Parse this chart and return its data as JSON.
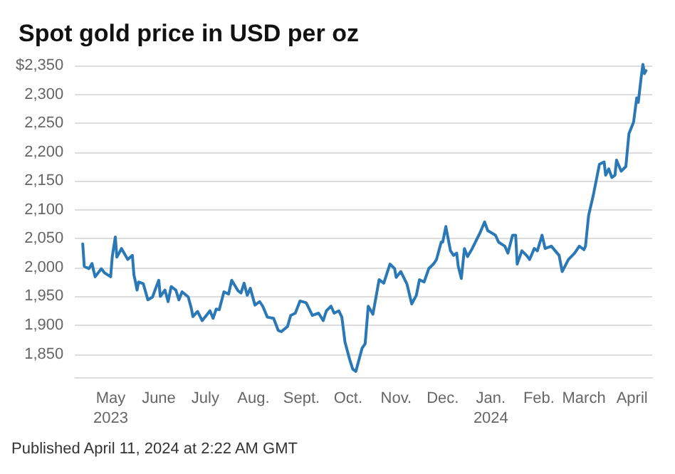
{
  "chart_data": {
    "type": "line",
    "title": "Spot gold price in USD per oz",
    "annotations": [
      "Published April 11, 2024 at 2:22 AM GMT"
    ],
    "series": [
      {
        "color": "#2a78b5",
        "x": [
          "2023-04-13",
          "2023-04-14",
          "2023-04-17",
          "2023-04-19",
          "2023-04-20",
          "2023-04-21",
          "2023-04-25",
          "2023-04-27",
          "2023-05-01",
          "2023-05-02",
          "2023-05-04",
          "2023-05-05",
          "2023-05-08",
          "2023-05-12",
          "2023-05-15",
          "2023-05-16",
          "2023-05-17",
          "2023-05-18",
          "2023-05-19",
          "2023-05-22",
          "2023-05-25",
          "2023-05-28",
          "2023-05-30",
          "2023-06-01",
          "2023-06-02",
          "2023-06-05",
          "2023-06-07",
          "2023-06-09",
          "2023-06-12",
          "2023-06-14",
          "2023-06-16",
          "2023-06-20",
          "2023-06-22",
          "2023-06-23",
          "2023-06-26",
          "2023-06-29",
          "2023-07-04",
          "2023-07-06",
          "2023-07-08",
          "2023-07-10",
          "2023-07-13",
          "2023-07-16",
          "2023-07-18",
          "2023-07-22",
          "2023-07-24",
          "2023-07-26",
          "2023-07-28",
          "2023-07-30",
          "2023-08-02",
          "2023-08-05",
          "2023-08-07",
          "2023-08-10",
          "2023-08-14",
          "2023-08-17",
          "2023-08-19",
          "2023-08-23",
          "2023-08-25",
          "2023-08-28",
          "2023-08-31",
          "2023-09-04",
          "2023-09-08",
          "2023-09-12",
          "2023-09-15",
          "2023-09-17",
          "2023-09-20",
          "2023-09-22",
          "2023-09-25",
          "2023-09-27",
          "2023-09-29",
          "2023-10-02",
          "2023-10-04",
          "2023-10-06",
          "2023-10-10",
          "2023-10-12",
          "2023-10-14",
          "2023-10-17",
          "2023-10-21",
          "2023-10-24",
          "2023-10-28",
          "2023-10-31",
          "2023-11-01",
          "2023-11-04",
          "2023-11-08",
          "2023-11-11",
          "2023-11-14",
          "2023-11-16",
          "2023-11-19",
          "2023-11-22",
          "2023-11-25",
          "2023-11-27",
          "2023-11-30",
          "2023-12-01",
          "2023-12-03",
          "2023-12-06",
          "2023-12-08",
          "2023-12-10",
          "2023-12-11",
          "2023-12-13",
          "2023-12-15",
          "2023-12-17",
          "2023-12-20",
          "2023-12-25",
          "2023-12-28",
          "2023-12-30",
          "2024-01-04",
          "2024-01-06",
          "2024-01-10",
          "2024-01-12",
          "2024-01-15",
          "2024-01-17",
          "2024-01-18",
          "2024-01-21",
          "2024-01-24",
          "2024-01-26",
          "2024-01-29",
          "2024-01-31",
          "2024-02-03",
          "2024-02-05",
          "2024-02-09",
          "2024-02-14",
          "2024-02-16",
          "2024-02-20",
          "2024-02-24",
          "2024-02-27",
          "2024-03-01",
          "2024-03-02",
          "2024-03-04",
          "2024-03-07",
          "2024-03-11",
          "2024-03-14",
          "2024-03-15",
          "2024-03-17",
          "2024-03-19",
          "2024-03-21",
          "2024-03-22",
          "2024-03-25",
          "2024-03-28",
          "2024-03-30",
          "2024-04-02",
          "2024-04-04",
          "2024-04-05",
          "2024-04-07",
          "2024-04-08",
          "2024-04-09",
          "2024-04-10"
        ],
        "values": [
          2041,
          2002,
          1998,
          2007,
          1995,
          1984,
          1998,
          1991,
          1984,
          2018,
          2053,
          2018,
          2033,
          2014,
          2021,
          1987,
          1975,
          1961,
          1975,
          1972,
          1944,
          1949,
          1964,
          1978,
          1950,
          1961,
          1941,
          1967,
          1961,
          1944,
          1958,
          1949,
          1929,
          1915,
          1924,
          1908,
          1925,
          1912,
          1928,
          1927,
          1958,
          1954,
          1978,
          1960,
          1956,
          1973,
          1952,
          1964,
          1935,
          1941,
          1933,
          1914,
          1912,
          1891,
          1889,
          1898,
          1917,
          1921,
          1942,
          1939,
          1917,
          1921,
          1908,
          1925,
          1933,
          1921,
          1925,
          1914,
          1871,
          1841,
          1824,
          1820,
          1860,
          1868,
          1933,
          1919,
          1979,
          1973,
          2006,
          1998,
          1983,
          1993,
          1971,
          1937,
          1952,
          1979,
          1975,
          1998,
          2006,
          2014,
          2044,
          2044,
          2071,
          2029,
          2021,
          2025,
          2002,
          1981,
          2033,
          2019,
          2033,
          2060,
          2079,
          2064,
          2056,
          2044,
          2037,
          2025,
          2056,
          2056,
          2006,
          2029,
          2021,
          2014,
          2033,
          2029,
          2056,
          2033,
          2037,
          2021,
          1993,
          2014,
          2025,
          2037,
          2031,
          2037,
          2090,
          2125,
          2179,
          2183,
          2160,
          2171,
          2156,
          2160,
          2186,
          2167,
          2175,
          2232,
          2252,
          2294,
          2286,
          2332,
          2352,
          2336,
          2341
        ]
      }
    ],
    "xlim": [
      "2023-04-08",
      "2024-04-14"
    ],
    "xticks": [
      {
        "value": "2023-05-01",
        "label": "May\n2023"
      },
      {
        "value": "2023-06-01",
        "label": "June"
      },
      {
        "value": "2023-07-01",
        "label": "July"
      },
      {
        "value": "2023-08-01",
        "label": "Aug."
      },
      {
        "value": "2023-09-01",
        "label": "Sept."
      },
      {
        "value": "2023-10-01",
        "label": "Oct."
      },
      {
        "value": "2023-11-01",
        "label": "Nov."
      },
      {
        "value": "2023-12-01",
        "label": "Dec."
      },
      {
        "value": "2024-01-01",
        "label": "Jan.\n2024"
      },
      {
        "value": "2024-02-01",
        "label": "Feb."
      },
      {
        "value": "2024-03-01",
        "label": "March"
      },
      {
        "value": "2024-04-01",
        "label": "April"
      }
    ],
    "ylim": [
      1810,
      2355
    ],
    "yticks": [
      {
        "value": 1850,
        "label": "1,850"
      },
      {
        "value": 1900,
        "label": "1,900"
      },
      {
        "value": 1950,
        "label": "1,950"
      },
      {
        "value": 2000,
        "label": "2,000"
      },
      {
        "value": 2050,
        "label": "2,050"
      },
      {
        "value": 2100,
        "label": "2,100"
      },
      {
        "value": 2150,
        "label": "2,150"
      },
      {
        "value": 2200,
        "label": "2,200"
      },
      {
        "value": 2250,
        "label": "2,250"
      },
      {
        "value": 2300,
        "label": "2,300"
      },
      {
        "value": 2350,
        "label": "$2,350"
      }
    ],
    "grid": "y",
    "marker": "none",
    "line_style": "solid"
  }
}
